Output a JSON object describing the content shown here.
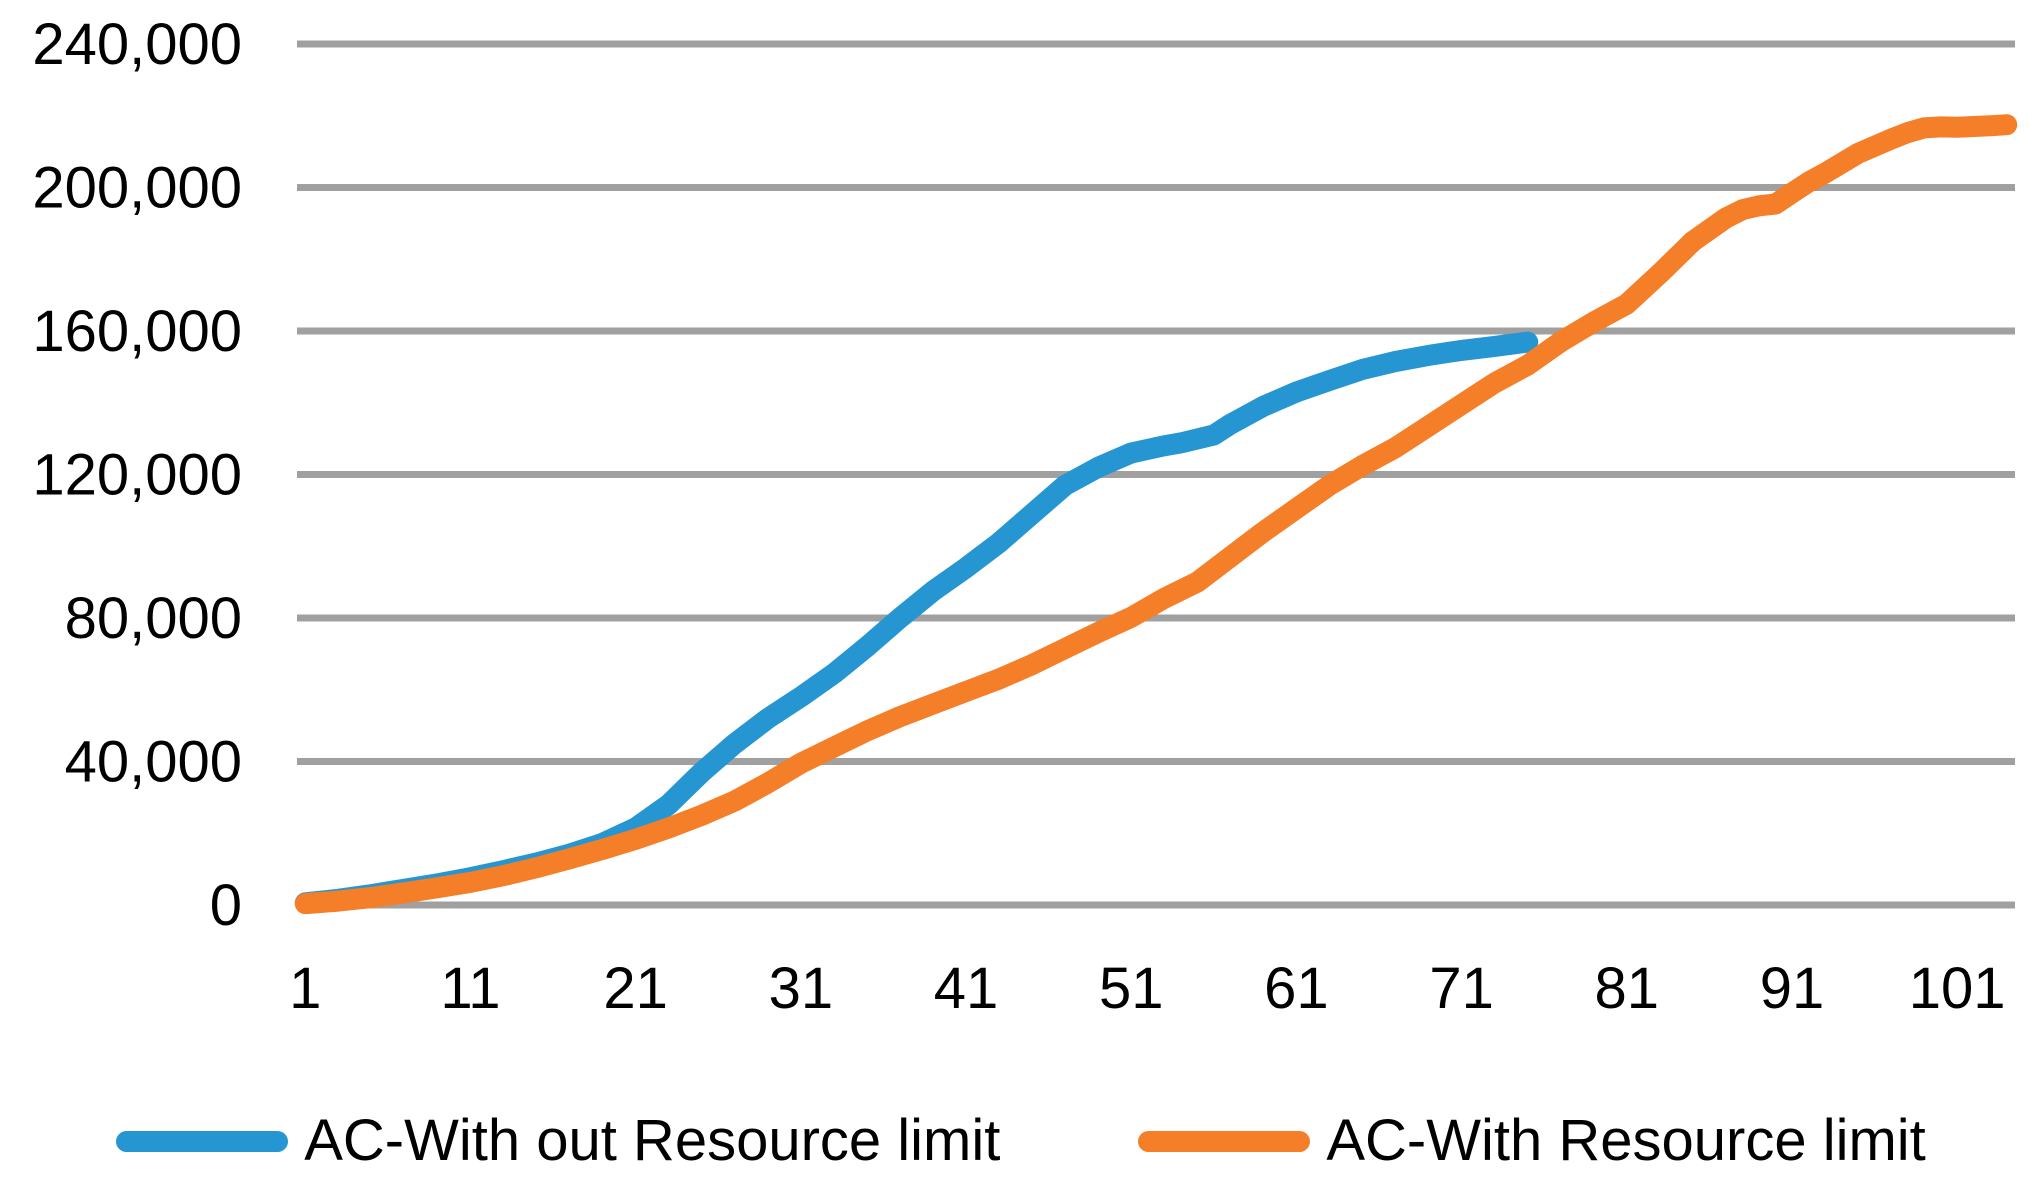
{
  "chart_data": {
    "type": "line",
    "title": "",
    "xlabel": "",
    "ylabel": "",
    "x_ticks": [
      1,
      11,
      21,
      31,
      41,
      51,
      61,
      71,
      81,
      91,
      101
    ],
    "y_ticks": [
      0,
      40000,
      80000,
      120000,
      160000,
      200000,
      240000
    ],
    "y_tick_labels": [
      "0",
      "40,000",
      "80,000",
      "120,000",
      "160,000",
      "200,000",
      "240,000"
    ],
    "xlim": [
      0.5,
      104.5
    ],
    "ylim": [
      0,
      240000
    ],
    "grid": "horizontal-only",
    "legend_position": "bottom",
    "colors": {
      "background": "#FFFFFF",
      "gridline": "#A0A0A0",
      "text": "#000000",
      "series_blue": "#2696D3",
      "series_orange": "#F57E28"
    },
    "series": [
      {
        "name": "AC-With out Resource limit",
        "color": "#2696D3",
        "points": [
          [
            1,
            600
          ],
          [
            3,
            1600
          ],
          [
            5,
            2900
          ],
          [
            7,
            4400
          ],
          [
            9,
            5900
          ],
          [
            11,
            7600
          ],
          [
            13,
            9600
          ],
          [
            15,
            11700
          ],
          [
            17,
            14200
          ],
          [
            19,
            17200
          ],
          [
            21,
            21500
          ],
          [
            23,
            28000
          ],
          [
            25,
            37000
          ],
          [
            27,
            45000
          ],
          [
            29,
            52000
          ],
          [
            31,
            58000
          ],
          [
            33,
            64500
          ],
          [
            35,
            72000
          ],
          [
            37,
            80000
          ],
          [
            39,
            87500
          ],
          [
            41,
            94000
          ],
          [
            43,
            101000
          ],
          [
            45,
            109000
          ],
          [
            47,
            117000
          ],
          [
            49,
            122000
          ],
          [
            51,
            126000
          ],
          [
            53,
            128000
          ],
          [
            54,
            128800
          ],
          [
            56,
            131000
          ],
          [
            57,
            134000
          ],
          [
            59,
            139000
          ],
          [
            61,
            143000
          ],
          [
            63,
            146200
          ],
          [
            65,
            149300
          ],
          [
            67,
            151500
          ],
          [
            69,
            153200
          ],
          [
            71,
            154600
          ],
          [
            73,
            155700
          ],
          [
            75,
            156900
          ]
        ]
      },
      {
        "name": "AC-With Resource limit",
        "color": "#F57E28",
        "points": [
          [
            1,
            400
          ],
          [
            3,
            1100
          ],
          [
            5,
            2100
          ],
          [
            7,
            3400
          ],
          [
            9,
            4800
          ],
          [
            11,
            6300
          ],
          [
            13,
            8200
          ],
          [
            15,
            10400
          ],
          [
            17,
            12900
          ],
          [
            19,
            15500
          ],
          [
            21,
            18300
          ],
          [
            23,
            21500
          ],
          [
            25,
            25000
          ],
          [
            27,
            29000
          ],
          [
            29,
            34000
          ],
          [
            31,
            39500
          ],
          [
            33,
            44000
          ],
          [
            35,
            48500
          ],
          [
            37,
            52500
          ],
          [
            39,
            56000
          ],
          [
            41,
            59500
          ],
          [
            43,
            63000
          ],
          [
            45,
            67000
          ],
          [
            47,
            71500
          ],
          [
            49,
            76000
          ],
          [
            51,
            80200
          ],
          [
            53,
            85500
          ],
          [
            55,
            90000
          ],
          [
            57,
            97000
          ],
          [
            59,
            104000
          ],
          [
            61,
            110500
          ],
          [
            63,
            117000
          ],
          [
            65,
            122500
          ],
          [
            67,
            127500
          ],
          [
            69,
            133500
          ],
          [
            71,
            139500
          ],
          [
            73,
            145500
          ],
          [
            75,
            150500
          ],
          [
            77,
            157000
          ],
          [
            79,
            162500
          ],
          [
            81,
            167500
          ],
          [
            83,
            176000
          ],
          [
            85,
            185000
          ],
          [
            87,
            191500
          ],
          [
            88,
            193800
          ],
          [
            89,
            194900
          ],
          [
            90,
            195400
          ],
          [
            91,
            198500
          ],
          [
            92,
            201500
          ],
          [
            93,
            204000
          ],
          [
            95,
            209500
          ],
          [
            97,
            213500
          ],
          [
            98,
            215300
          ],
          [
            99,
            216600
          ],
          [
            100,
            216900
          ],
          [
            101,
            216800
          ],
          [
            102,
            217000
          ],
          [
            103,
            217200
          ],
          [
            104,
            217500
          ]
        ]
      }
    ]
  }
}
